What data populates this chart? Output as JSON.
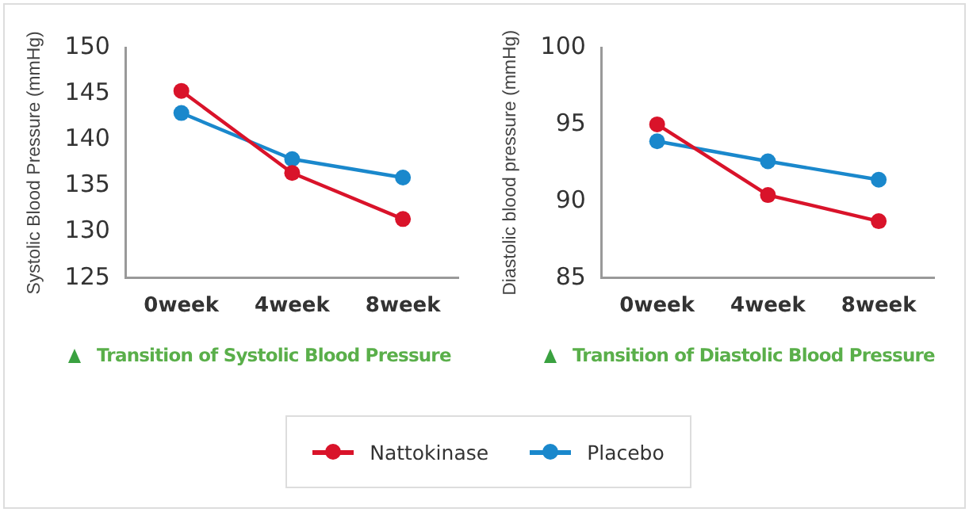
{
  "chart_data": [
    {
      "type": "line",
      "title": "Transition of Systolic Blood Pressure",
      "ylabel": "Systolic Blood Pressure (mmHg)",
      "categories": [
        "0week",
        "4week",
        "8week"
      ],
      "series": [
        {
          "name": "Nattokinase",
          "color": "#d9132a",
          "values": [
            145.3,
            136.4,
            131.4
          ]
        },
        {
          "name": "Placebo",
          "color": "#1a88cc",
          "values": [
            142.9,
            137.9,
            135.9
          ]
        }
      ],
      "ylim": [
        125,
        150
      ],
      "yticks": [
        125,
        130,
        135,
        140,
        145,
        150
      ],
      "grid": false,
      "legend": "bottom",
      "marker": "circle",
      "line_style": "solid"
    },
    {
      "type": "line",
      "title": "Transition of Diastolic Blood Pressure",
      "ylabel": "Diastolic blood pressure (mmHg)",
      "categories": [
        "0week",
        "4week",
        "8week"
      ],
      "series": [
        {
          "name": "Nattokinase",
          "color": "#d9132a",
          "values": [
            95.0,
            90.4,
            88.7
          ]
        },
        {
          "name": "Placebo",
          "color": "#1a88cc",
          "values": [
            93.9,
            92.6,
            91.4
          ]
        }
      ],
      "ylim": [
        85,
        100
      ],
      "yticks": [
        85,
        90,
        95,
        100
      ],
      "grid": false,
      "legend": "bottom",
      "marker": "circle",
      "line_style": "solid"
    }
  ]
}
